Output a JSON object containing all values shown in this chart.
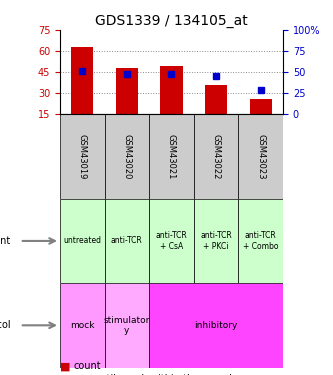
{
  "title": "GDS1339 / 134105_at",
  "samples": [
    "GSM43019",
    "GSM43020",
    "GSM43021",
    "GSM43022",
    "GSM43023"
  ],
  "bar_bottoms": [
    15,
    15,
    15,
    15,
    15
  ],
  "bar_tops": [
    63,
    48,
    49.5,
    36,
    26
  ],
  "percentile_vals": [
    45.5,
    44,
    44,
    42,
    32
  ],
  "left_ylim": [
    15,
    75
  ],
  "left_yticks": [
    15,
    30,
    45,
    60,
    75
  ],
  "right_ylim": [
    0,
    100
  ],
  "right_yticks": [
    0,
    25,
    50,
    75,
    100
  ],
  "right_yticklabels": [
    "0",
    "25",
    "50",
    "75",
    "100%"
  ],
  "bar_color": "#cc0000",
  "blue_color": "#0000cc",
  "agent_labels": [
    "untreated",
    "anti-TCR",
    "anti-TCR\n+ CsA",
    "anti-TCR\n+ PKCi",
    "anti-TCR\n+ Combo"
  ],
  "protocol_spans": [
    {
      "label": "mock",
      "start": 0,
      "end": 1,
      "color": "#ff99ff"
    },
    {
      "label": "stimulator\ny",
      "start": 1,
      "end": 2,
      "color": "#ff99ff"
    },
    {
      "label": "inhibitory",
      "start": 2,
      "end": 5,
      "color": "#ff44ff"
    }
  ],
  "agent_colors": [
    "#ccffcc",
    "#ccffcc",
    "#ccffcc",
    "#ccffcc",
    "#ccffcc"
  ],
  "gsm_bg_color": "#cccccc",
  "left_tick_color": "#cc0000",
  "right_tick_color": "#0000cc",
  "grid_color": "#888888"
}
